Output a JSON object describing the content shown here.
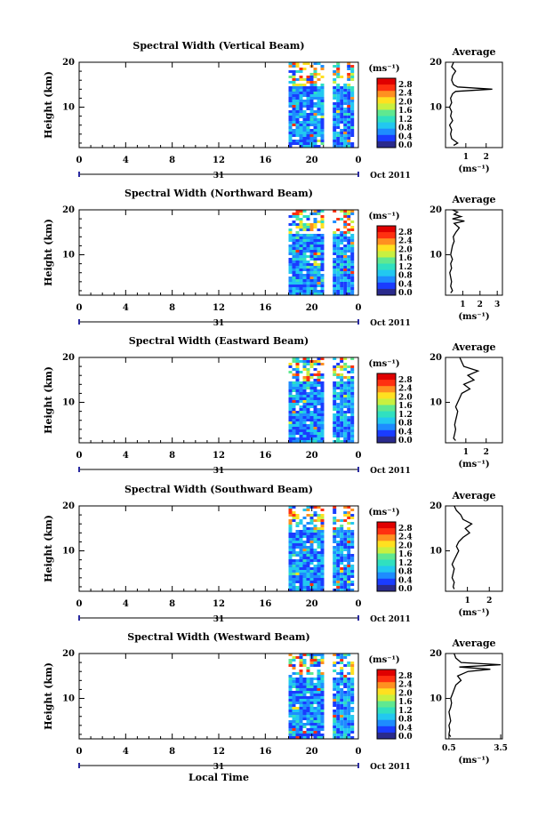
{
  "figure": {
    "xlabel": "Local Time",
    "date_label": "Oct 2011",
    "day_label": "31",
    "x_ticks": [
      "0",
      "4",
      "8",
      "12",
      "16",
      "20",
      "0"
    ],
    "colorbar_unit": "(ms⁻¹)",
    "colorbar_ticks": [
      "0.0",
      "0.4",
      "0.8",
      "1.2",
      "1.6",
      "2.0",
      "2.4",
      "2.8"
    ],
    "average_title": "Average",
    "average_xlabel": "(ms⁻¹)",
    "colors": {
      "scale": [
        "#2a2a8c",
        "#1a3cff",
        "#1e8cff",
        "#22c8f0",
        "#30e0c0",
        "#60e890",
        "#c8f040",
        "#ffe020",
        "#ff9020",
        "#ff3010",
        "#e00000"
      ]
    }
  },
  "chart_data": [
    {
      "type": "heatmap",
      "title": "Spectral Width (Vertical Beam)",
      "ylabel": "Height (km)",
      "y_ticks": [
        "20",
        "10"
      ],
      "xlim": [
        0,
        24
      ],
      "ylim": [
        1,
        20
      ],
      "colorbar": {
        "min": 0.0,
        "max": 2.8
      },
      "data_segments_hours": [
        [
          18,
          21
        ],
        [
          21.8,
          23.4
        ]
      ],
      "data_height_km": [
        1.5,
        20
      ],
      "average_profile": {
        "x_ticks": [
          "1",
          "2"
        ],
        "xlim": [
          0,
          2.8
        ],
        "height_km": [
          1.5,
          2,
          3,
          4,
          5,
          6,
          7,
          8,
          9,
          10,
          11,
          12,
          13,
          13.5,
          14,
          14.5,
          15,
          16,
          17,
          18,
          19,
          20
        ],
        "value": [
          0.4,
          0.6,
          0.3,
          0.25,
          0.3,
          0.2,
          0.35,
          0.25,
          0.3,
          0.2,
          0.3,
          0.25,
          0.35,
          0.5,
          2.3,
          0.6,
          0.4,
          0.3,
          0.35,
          0.5,
          0.3,
          0.4
        ]
      }
    },
    {
      "type": "heatmap",
      "title": "Spectral Width (Northward Beam)",
      "ylabel": "Height (km)",
      "y_ticks": [
        "20",
        "10"
      ],
      "xlim": [
        0,
        24
      ],
      "ylim": [
        1,
        20
      ],
      "colorbar": {
        "min": 0.0,
        "max": 2.8
      },
      "data_segments_hours": [
        [
          18,
          21
        ],
        [
          21.8,
          23.4
        ]
      ],
      "data_height_km": [
        1.5,
        20
      ],
      "average_profile": {
        "x_ticks": [
          "1",
          "2",
          "3"
        ],
        "xlim": [
          0,
          3.3
        ],
        "height_km": [
          1.5,
          2,
          3,
          4,
          5,
          6,
          7,
          8,
          9,
          10,
          11,
          12,
          13,
          14,
          15,
          16,
          17,
          17.5,
          18,
          18.5,
          19,
          19.5,
          20
        ],
        "value": [
          0.3,
          0.4,
          0.3,
          0.35,
          0.3,
          0.25,
          0.35,
          0.3,
          0.4,
          0.3,
          0.35,
          0.4,
          0.5,
          0.45,
          0.6,
          0.8,
          0.5,
          1.1,
          0.4,
          0.9,
          0.5,
          0.7,
          0.4
        ]
      }
    },
    {
      "type": "heatmap",
      "title": "Spectral Width (Eastward Beam)",
      "ylabel": "Height (km)",
      "y_ticks": [
        "20",
        "10"
      ],
      "xlim": [
        0,
        24
      ],
      "ylim": [
        1,
        20
      ],
      "colorbar": {
        "min": 0.0,
        "max": 2.8
      },
      "data_segments_hours": [
        [
          18,
          21
        ],
        [
          21.8,
          23.4
        ]
      ],
      "data_height_km": [
        1.5,
        20
      ],
      "average_profile": {
        "x_ticks": [
          "1",
          "2"
        ],
        "xlim": [
          0,
          2.8
        ],
        "height_km": [
          1.5,
          2,
          3,
          4,
          5,
          6,
          7,
          8,
          9,
          10,
          11,
          12,
          13,
          14,
          15,
          16,
          17,
          18,
          19,
          20
        ],
        "value": [
          0.5,
          0.4,
          0.45,
          0.5,
          0.45,
          0.5,
          0.55,
          0.6,
          0.5,
          0.6,
          0.7,
          0.8,
          1.2,
          0.9,
          1.4,
          1.1,
          1.6,
          0.9,
          0.8,
          0.7
        ]
      }
    },
    {
      "type": "heatmap",
      "title": "Spectral Width (Southward Beam)",
      "ylabel": "Height (km)",
      "y_ticks": [
        "20",
        "10"
      ],
      "xlim": [
        0,
        24
      ],
      "ylim": [
        1,
        20
      ],
      "colorbar": {
        "min": 0.0,
        "max": 2.8
      },
      "data_segments_hours": [
        [
          18,
          21
        ],
        [
          21.8,
          23.4
        ]
      ],
      "data_height_km": [
        1.5,
        20
      ],
      "average_profile": {
        "x_ticks": [
          "1",
          "2"
        ],
        "xlim": [
          0,
          2.6
        ],
        "height_km": [
          1.5,
          2,
          3,
          4,
          5,
          6,
          7,
          8,
          9,
          10,
          11,
          12,
          13,
          14,
          15,
          16,
          17,
          18,
          19,
          20
        ],
        "value": [
          0.4,
          0.35,
          0.4,
          0.3,
          0.35,
          0.4,
          0.3,
          0.4,
          0.5,
          0.6,
          0.5,
          0.6,
          0.8,
          1.1,
          0.9,
          1.2,
          0.8,
          0.7,
          0.5,
          0.4
        ]
      }
    },
    {
      "type": "heatmap",
      "title": "Spectral Width (Westward Beam)",
      "ylabel": "Height (km)",
      "y_ticks": [
        "20",
        "10"
      ],
      "xlim": [
        0,
        24
      ],
      "ylim": [
        1,
        20
      ],
      "colorbar": {
        "min": 0.0,
        "max": 2.8
      },
      "data_segments_hours": [
        [
          18,
          21
        ],
        [
          21.8,
          23.4
        ]
      ],
      "data_height_km": [
        1.5,
        20
      ],
      "average_profile": {
        "x_ticks": [
          "0.5",
          "3.5"
        ],
        "xlim": [
          0.3,
          3.6
        ],
        "height_km": [
          1.5,
          2,
          3,
          4,
          5,
          6,
          7,
          8,
          9,
          10,
          11,
          12,
          13,
          14,
          15,
          16,
          16.5,
          17,
          17.5,
          18,
          19,
          20
        ],
        "value": [
          0.6,
          0.5,
          0.55,
          0.5,
          0.6,
          0.55,
          0.5,
          0.6,
          0.65,
          0.6,
          0.7,
          0.8,
          0.9,
          1.2,
          1.0,
          1.6,
          2.9,
          1.1,
          3.5,
          1.2,
          0.9,
          0.8
        ]
      }
    }
  ]
}
